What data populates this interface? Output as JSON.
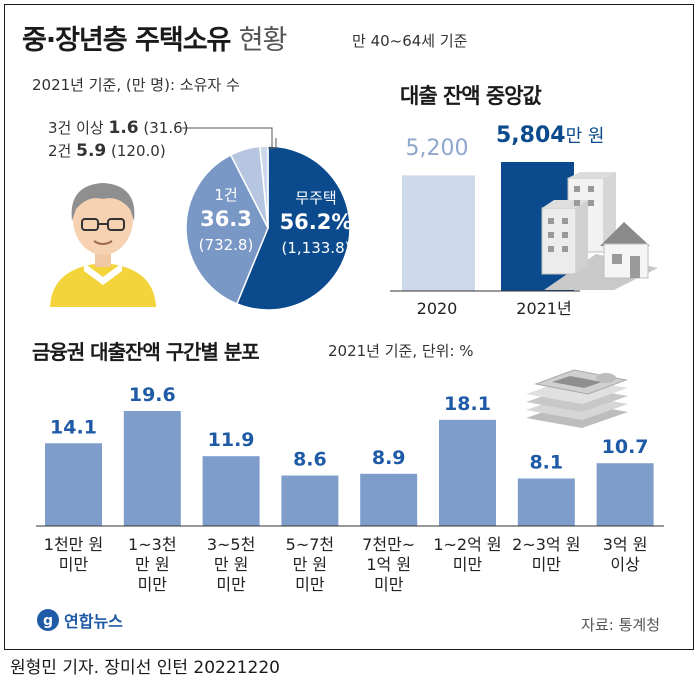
{
  "header": {
    "title": "중·장년층 주택소유",
    "title_suffix": "현황",
    "subtitle": "만 40~64세 기준"
  },
  "pie_note": "2021년 기준, (만 명): 소유자 수",
  "median_section": {
    "title": "대출 잔액 중앙값"
  },
  "distribution_section": {
    "title": "금융권 대출잔액 구간별 분포",
    "note": "2021년 기준, 단위: %"
  },
  "footer": {
    "source": "자료: 통계청",
    "credit": "원형민 기자. 장미선 인턴  20221220",
    "logo_text": "연합뉴스"
  },
  "colors": {
    "dark_blue": "#0b4a8c",
    "mid_blue": "#7a98c6",
    "light_blue": "#b7c6e0",
    "lightest_blue": "#cdd8ea",
    "bar_blue": "#7f9dcb",
    "value_blue": "#1f5aa6"
  },
  "icons": [
    "person-illustration",
    "apartment-house-illustration",
    "money-stack-illustration",
    "yonhap-logo"
  ],
  "chart_data": [
    {
      "type": "pie",
      "slices": [
        {
          "label": "무주택",
          "percent": "56.2%",
          "value": 56.2,
          "count": "(1,133.8)",
          "color": "#0b4a8c"
        },
        {
          "label": "1건",
          "percent": "36.3",
          "value": 36.3,
          "count": "(732.8)",
          "color": "#7a98c6"
        },
        {
          "label": "2건",
          "percent": "5.9",
          "value": 5.9,
          "count": "(120.0)",
          "color": "#b7c6e0"
        },
        {
          "label": "3건 이상",
          "percent": "1.6",
          "value": 1.6,
          "count": "(31.6)",
          "color": "#cdd8ea"
        }
      ]
    },
    {
      "type": "bar",
      "categories": [
        "2020",
        "2021년"
      ],
      "values": [
        5200,
        5804
      ],
      "labels": [
        "5,200",
        "5,804"
      ],
      "unit": "만 원",
      "colors": [
        "#cdd8ea",
        "#0b4a8c"
      ]
    },
    {
      "type": "bar",
      "categories": [
        [
          "1천만 원",
          "미만"
        ],
        [
          "1~3천",
          "만 원",
          "미만"
        ],
        [
          "3~5천",
          "만 원",
          "미만"
        ],
        [
          "5~7천",
          "만 원",
          "미만"
        ],
        [
          "7천만~",
          "1억 원",
          "미만"
        ],
        [
          "1~2억 원",
          "미만"
        ],
        [
          "2~3억 원",
          "미만"
        ],
        [
          "3억 원",
          "이상"
        ]
      ],
      "values": [
        14.1,
        19.6,
        11.9,
        8.6,
        8.9,
        18.1,
        8.1,
        10.7
      ],
      "labels": [
        "14.1",
        "19.6",
        "11.9",
        "8.6",
        "8.9",
        "18.1",
        "8.1",
        "10.7"
      ]
    }
  ]
}
